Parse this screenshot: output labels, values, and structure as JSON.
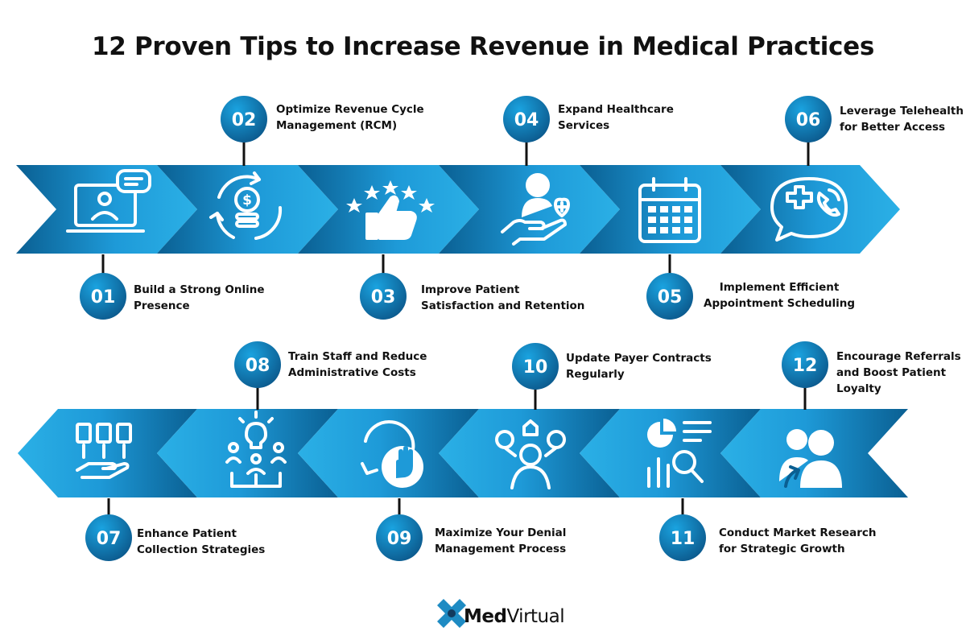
{
  "title": "12 Proven Tips to Increase Revenue in Medical Practices",
  "colors": {
    "arrow_light": "#2bb0e6",
    "arrow_dark": "#0a5f92",
    "badge_light": "#0a8fcf",
    "badge_dark": "#0b5689",
    "icon": "#ffffff",
    "connector": "#111111",
    "logo_blue": "#1e8bc3",
    "logo_dark": "#123a5e"
  },
  "tips": [
    {
      "num": "01",
      "lines": [
        "Build a Strong Online",
        "Presence"
      ],
      "icon": "laptop-chat-icon"
    },
    {
      "num": "02",
      "lines": [
        "Optimize Revenue Cycle",
        "Management (RCM)"
      ],
      "icon": "dollar-cycle-icon"
    },
    {
      "num": "03",
      "lines": [
        "Improve Patient",
        "Satisfaction and Retention"
      ],
      "icon": "thumbs-up-stars-icon"
    },
    {
      "num": "04",
      "lines": [
        "Expand Healthcare",
        "Services"
      ],
      "icon": "hand-care-icon"
    },
    {
      "num": "05",
      "lines": [
        "Implement Efficient",
        "Appointment Scheduling"
      ],
      "icon": "calendar-icon"
    },
    {
      "num": "06",
      "lines": [
        "Leverage Telehealth",
        "for Better Access"
      ],
      "icon": "telehealth-bubble-icon"
    },
    {
      "num": "07",
      "lines": [
        "Enhance Patient",
        "Collection Strategies"
      ],
      "icon": "documents-hand-icon"
    },
    {
      "num": "08",
      "lines": [
        "Train Staff and Reduce",
        "Administrative Costs"
      ],
      "icon": "team-idea-icon"
    },
    {
      "num": "09",
      "lines": [
        "Maximize Your Denial",
        "Management Process"
      ],
      "icon": "gear-stop-hand-icon"
    },
    {
      "num": "10",
      "lines": [
        "Update Payer Contracts",
        "Regularly"
      ],
      "icon": "person-options-icon"
    },
    {
      "num": "11",
      "lines": [
        "Conduct Market Research",
        "for Strategic Growth"
      ],
      "icon": "chart-research-icon"
    },
    {
      "num": "12",
      "lines": [
        "Encourage Referrals",
        "and Boost Patient",
        "Loyalty"
      ],
      "icon": "referral-people-icon"
    }
  ],
  "logo": {
    "part1": "Med",
    "part2": "Virtual"
  }
}
